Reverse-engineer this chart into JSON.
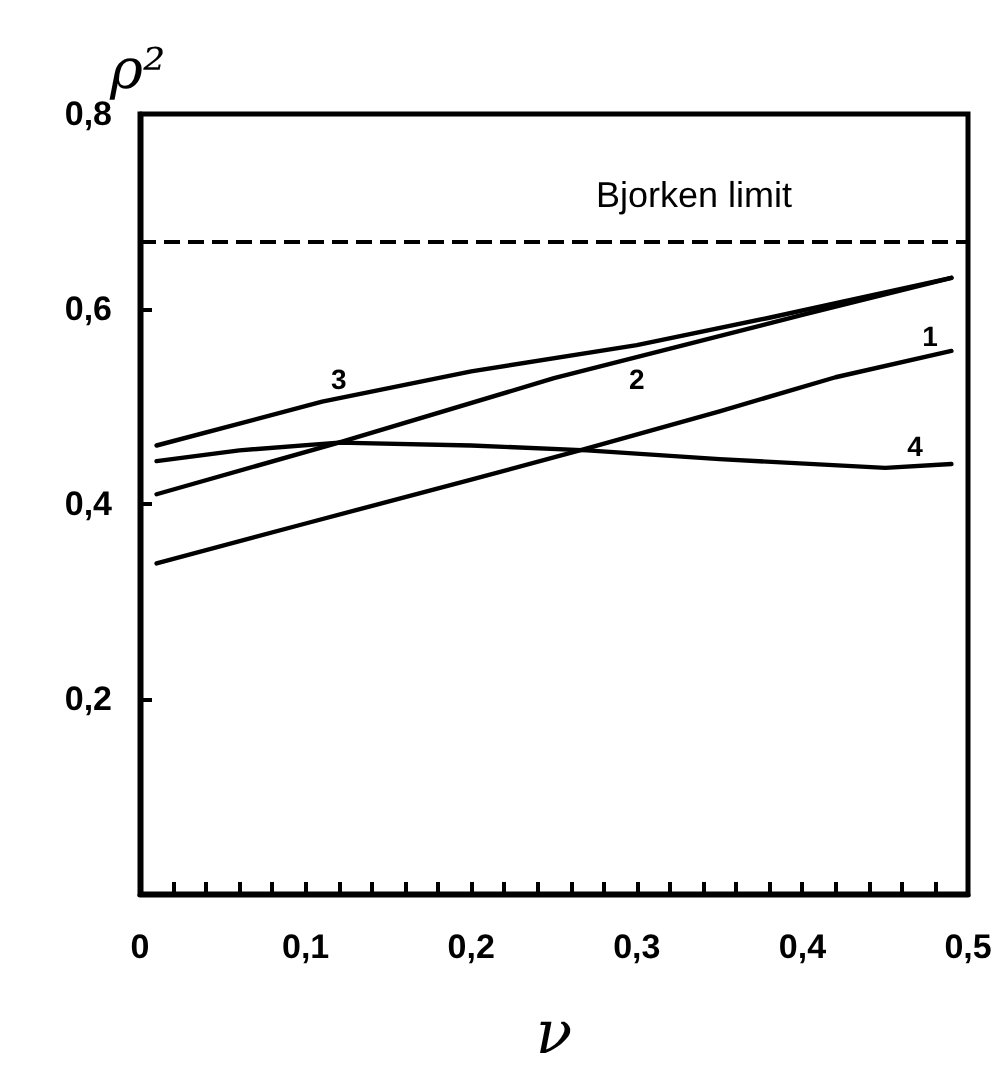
{
  "chart_data": {
    "type": "line",
    "xlabel": "ν",
    "ylabel": "ρ²",
    "xlim": [
      0,
      0.5
    ],
    "ylim": [
      0,
      0.8
    ],
    "xticks": [
      {
        "value": 0,
        "label": "0"
      },
      {
        "value": 0.02,
        "label": null
      },
      {
        "value": 0.04,
        "label": null
      },
      {
        "value": 0.06,
        "label": null
      },
      {
        "value": 0.08,
        "label": null
      },
      {
        "value": 0.1,
        "label": "0,1"
      },
      {
        "value": 0.12,
        "label": null
      },
      {
        "value": 0.14,
        "label": null
      },
      {
        "value": 0.16,
        "label": null
      },
      {
        "value": 0.18,
        "label": null
      },
      {
        "value": 0.2,
        "label": "0,2"
      },
      {
        "value": 0.22,
        "label": null
      },
      {
        "value": 0.24,
        "label": null
      },
      {
        "value": 0.26,
        "label": null
      },
      {
        "value": 0.28,
        "label": null
      },
      {
        "value": 0.3,
        "label": "0,3"
      },
      {
        "value": 0.32,
        "label": null
      },
      {
        "value": 0.34,
        "label": null
      },
      {
        "value": 0.36,
        "label": null
      },
      {
        "value": 0.38,
        "label": null
      },
      {
        "value": 0.4,
        "label": "0,4"
      },
      {
        "value": 0.42,
        "label": null
      },
      {
        "value": 0.44,
        "label": null
      },
      {
        "value": 0.46,
        "label": null
      },
      {
        "value": 0.48,
        "label": null
      },
      {
        "value": 0.5,
        "label": "0,5"
      }
    ],
    "yticks": [
      {
        "value": 0.2,
        "label": "0,2"
      },
      {
        "value": 0.4,
        "label": "0,4"
      },
      {
        "value": 0.6,
        "label": "0,6"
      },
      {
        "value": 0.8,
        "label": "0,8"
      }
    ],
    "series": [
      {
        "color": "#000000",
        "x": [
          0.01,
          0.1,
          0.2,
          0.27,
          0.35,
          0.42,
          0.49
        ],
        "values": [
          0.339,
          0.38,
          0.425,
          0.457,
          0.495,
          0.53,
          0.557
        ]
      },
      {
        "color": "#000000",
        "x": [
          0.01,
          0.12,
          0.25,
          0.4,
          0.49
        ],
        "values": [
          0.41,
          0.463,
          0.529,
          0.594,
          0.632
        ]
      },
      {
        "color": "#000000",
        "x": [
          0.01,
          0.11,
          0.2,
          0.3,
          0.38,
          0.49
        ],
        "values": [
          0.46,
          0.505,
          0.536,
          0.563,
          0.591,
          0.632
        ]
      },
      {
        "color": "#000000",
        "x": [
          0.01,
          0.06,
          0.12,
          0.2,
          0.27,
          0.35,
          0.45,
          0.49
        ],
        "values": [
          0.444,
          0.455,
          0.463,
          0.46,
          0.455,
          0.446,
          0.437,
          0.441
        ]
      }
    ],
    "annotations": [
      {
        "text": "1",
        "x": 0.477,
        "y": 0.552
      },
      {
        "text": "2",
        "x": 0.3,
        "y": 0.551
      },
      {
        "text": "3",
        "x": 0.12,
        "y": 0.508
      },
      {
        "text": "4",
        "x": 0.468,
        "y": 0.439
      }
    ],
    "ref_lines": [
      {
        "axis": "y",
        "value": 0.667,
        "label": "Bjorken limit",
        "color": "#000000",
        "line_style": "dashed"
      }
    ],
    "grid": false,
    "marker": "none",
    "line_style": "solid"
  }
}
